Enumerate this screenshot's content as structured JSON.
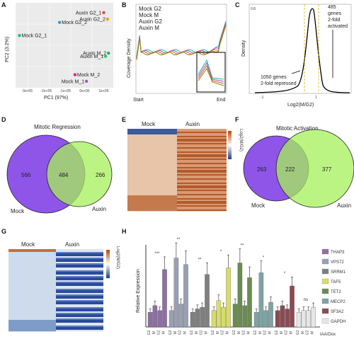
{
  "panel_letters": [
    "A",
    "B",
    "C",
    "D",
    "E",
    "F",
    "G",
    "H"
  ],
  "panelA": {
    "xlabel": "PC1 (97%)",
    "ylabel": "PC2 (3.2%)",
    "ticks_x": [
      "-3e+05",
      "-2e+05",
      "-1e+05",
      "0e+00",
      "1e+05"
    ],
    "points": [
      {
        "label": "Auxin G2_1",
        "color": "#e74c3c",
        "x": 100000.0,
        "y": 5
      },
      {
        "label": "Auxin G2_2",
        "color": "#f39c12",
        "x": 120000.0,
        "y": 4
      },
      {
        "label": "Mock G2_2",
        "color": "#3498db",
        "x": -130000.0,
        "y": 3.5
      },
      {
        "label": "Mock G2_1",
        "color": "#1abc9c",
        "x": -340000.0,
        "y": 1.5
      },
      {
        "label": "Auxin M_2",
        "color": "#27ae60",
        "x": 125000.0,
        "y": -1.2
      },
      {
        "label": "Auxin M_1",
        "color": "#2ecc71",
        "x": 110000.0,
        "y": -1.7
      },
      {
        "label": "Mock M_2",
        "color": "#e91e8c",
        "x": -50000.0,
        "y": -4.5
      },
      {
        "label": "Mock M_1",
        "color": "#9b59b6",
        "x": 10000.0,
        "y": -5.5
      }
    ]
  },
  "panelB": {
    "ylabel": "Coverage Density",
    "xstart": "Start",
    "xend": "End",
    "legend": [
      {
        "label": "Mock G2",
        "color": "#1abc9c"
      },
      {
        "label": "Mock M",
        "color": "#9b59b6"
      },
      {
        "label": "Auxin G2",
        "color": "#e74c3c"
      },
      {
        "label": "Auxin M",
        "color": "#7f8c00"
      }
    ]
  },
  "panelC": {
    "ylabel": "Density",
    "xlabel": "Log2(M/G2)",
    "ytick": "0.8",
    "ann_up": "485 genes 2-fold activated",
    "ann_up_lines": [
      "485",
      "genes",
      "2-fold",
      "activated"
    ],
    "ann_down_lines": [
      "1050 genes",
      "2-fold repressed"
    ]
  },
  "panelD": {
    "title": "Mitotic Regression",
    "left_only": "566",
    "both": "484",
    "right_only": "266",
    "left_label": "Mock",
    "right_label": "Auxin"
  },
  "panelE": {
    "col1": "Mock",
    "col2": "Auxin",
    "scale_label": "Log2(M/G2)"
  },
  "panelF": {
    "title": "Mitotic Activation",
    "left_only": "263",
    "both": "222",
    "right_only": "377",
    "left_label": "Mock",
    "right_label": "Auxin"
  },
  "panelG": {
    "col1": "Mock",
    "col2": "Auxin",
    "scale_label": "Log2(M/G2)"
  },
  "chart_data": {
    "type": "bar",
    "ylabel": "Relative Expression",
    "xlabel_right": "IAA/Dox",
    "categories": [
      "THAP3",
      "VPS72",
      "SRRM1",
      "TAF5",
      "TET2",
      "MECP2",
      "SF3A2",
      "GAPDH"
    ],
    "colors": [
      "#8e6fa3",
      "#9aa0b3",
      "#7f7f7f",
      "#d8dc6a",
      "#6b8b52",
      "#7ea3a4",
      "#8b4a52",
      "#e6e6e6"
    ],
    "conditions": [
      "G2",
      "M",
      "G2",
      "M"
    ],
    "treatment": [
      "-",
      "-",
      "+",
      "+"
    ],
    "values": [
      [
        0.9,
        1.3,
        1.0,
        3.5
      ],
      [
        1.0,
        4.2,
        1.4,
        3.8
      ],
      [
        0.9,
        1.1,
        1.2,
        3.2
      ],
      [
        1.0,
        1.6,
        1.2,
        3.6
      ],
      [
        1.4,
        3.9,
        1.3,
        3.0
      ],
      [
        0.9,
        3.3,
        1.0,
        1.5
      ],
      [
        1.0,
        1.3,
        1.1,
        2.5
      ],
      [
        0.9,
        1.0,
        1.0,
        1.2
      ]
    ],
    "significance": [
      "***",
      "**",
      "**",
      "*",
      "**",
      "*",
      "*",
      "ns"
    ],
    "ylim": [
      0,
      5
    ]
  }
}
